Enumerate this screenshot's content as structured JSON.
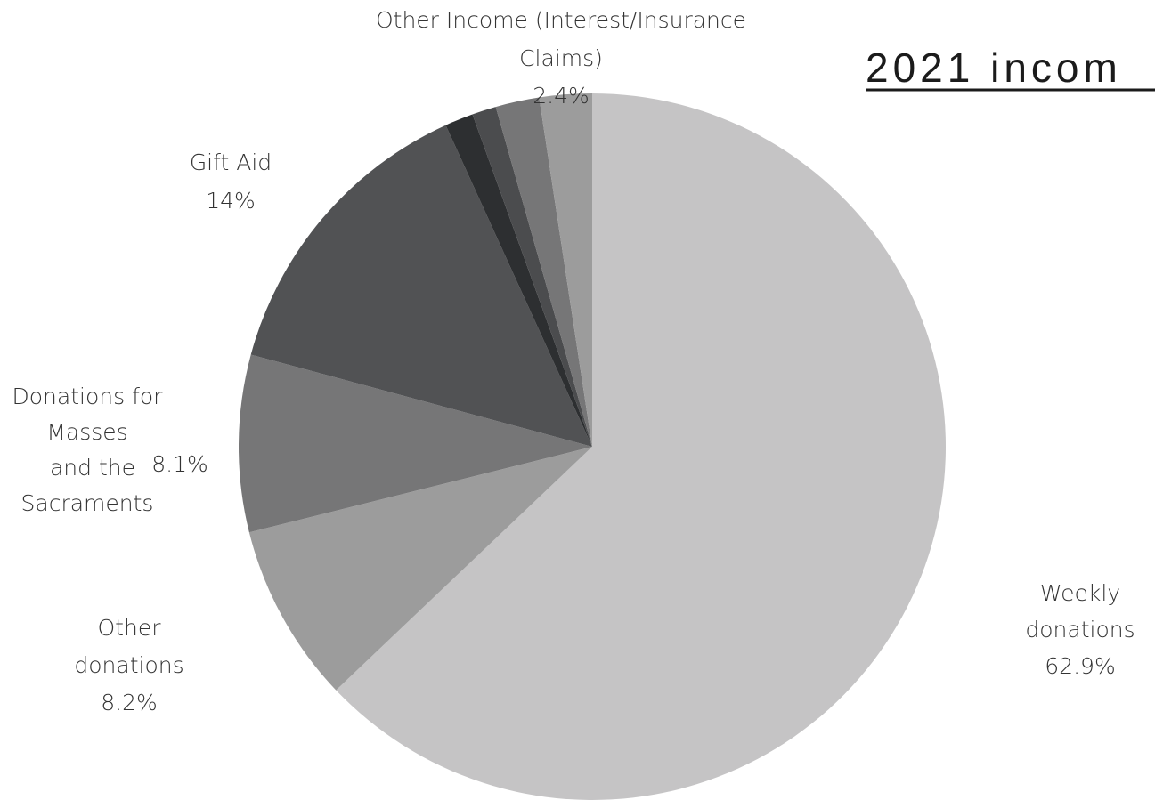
{
  "chart_data": {
    "type": "pie",
    "title": "2021 incom",
    "slices": [
      {
        "label_lines": [
          "Weekly",
          "donations"
        ],
        "value_label": "62.9%",
        "value": 62.9,
        "color": "#c5c4c5"
      },
      {
        "label_lines": [
          "Other",
          "donations"
        ],
        "value_label": "8.2%",
        "value": 8.2,
        "color": "#9c9c9c"
      },
      {
        "label_lines": [
          "Donations for",
          "Masses",
          "and the",
          "Sacraments"
        ],
        "value_label": "8.1%",
        "value": 8.1,
        "color": "#767677"
      },
      {
        "label_lines": [
          "Gift Aid"
        ],
        "value_label": "14%",
        "value": 14,
        "color": "#515254"
      },
      {
        "label_lines": [],
        "value_label": "",
        "value": 1.3,
        "color": "#2d2f31"
      },
      {
        "label_lines": [],
        "value_label": "",
        "value": 1.1,
        "color": "#4b4c4e"
      },
      {
        "label_lines": [],
        "value_label": "",
        "value": 2.0,
        "color": "#767677"
      },
      {
        "label_lines": [
          "Other Income (Interest/Insurance",
          "Claims)"
        ],
        "value_label": "2.4%",
        "value": 2.4,
        "color": "#9c9c9c"
      }
    ]
  }
}
